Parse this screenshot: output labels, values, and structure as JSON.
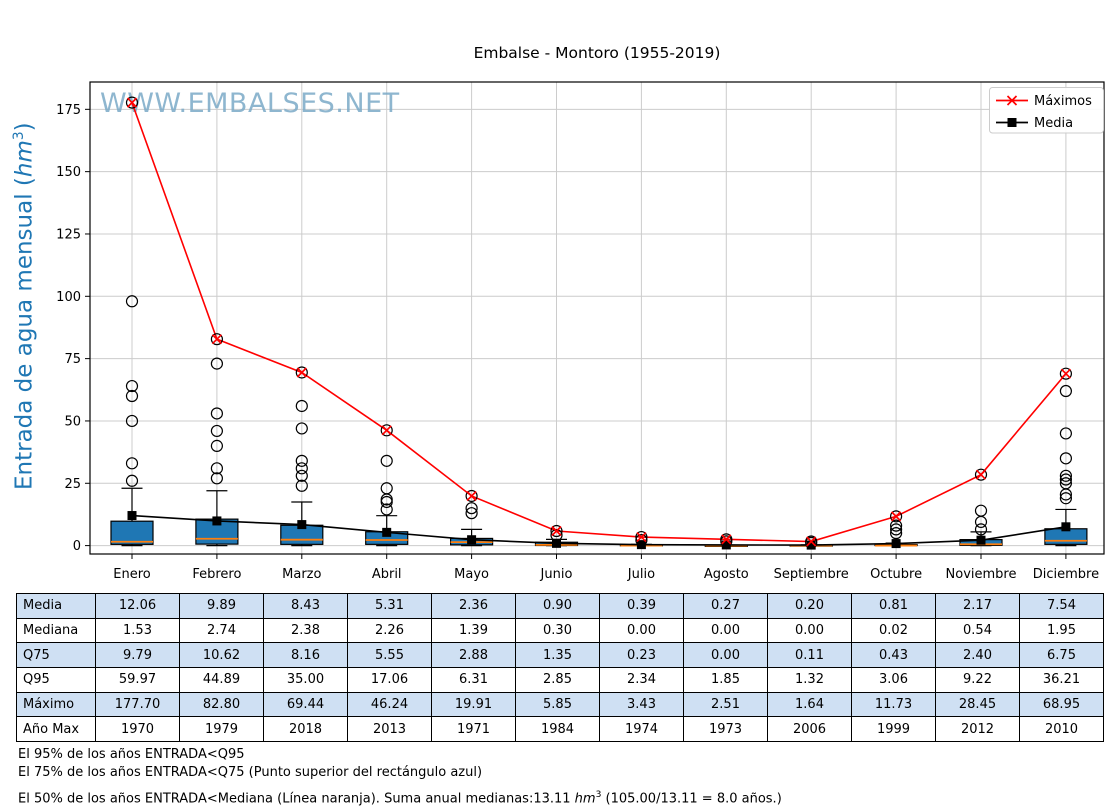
{
  "watermark": "WWW.EMBALSES.NET",
  "ylabel": {
    "prefix": "Entrada de agua mensual (",
    "unit": "hm",
    "sup": "3",
    "suffix": ")"
  },
  "chart_data": {
    "type": "box",
    "title": "Embalse - Montoro (1955-2019)",
    "xlabel": "",
    "ylabel": "Entrada de agua mensual (hm³)",
    "categories": [
      "Enero",
      "Febrero",
      "Marzo",
      "Abril",
      "Mayo",
      "Junio",
      "Julio",
      "Agosto",
      "Septiembre",
      "Octubre",
      "Noviembre",
      "Diciembre"
    ],
    "yticks": [
      0,
      25,
      50,
      75,
      100,
      125,
      150,
      175
    ],
    "ylim": [
      -3.4,
      186
    ],
    "grid": true,
    "legend_position": "upper right",
    "series": [
      {
        "name": "Máximos",
        "type": "line",
        "marker": "x",
        "color": "#ff0000",
        "values": [
          177.7,
          82.8,
          69.44,
          46.24,
          19.91,
          5.85,
          3.43,
          2.51,
          1.64,
          11.73,
          28.45,
          68.95
        ]
      },
      {
        "name": "Media",
        "type": "line",
        "marker": "square",
        "color": "#000000",
        "values": [
          12.06,
          9.89,
          8.43,
          5.31,
          2.36,
          0.9,
          0.39,
          0.27,
          0.2,
          0.81,
          2.17,
          7.54
        ]
      }
    ],
    "boxplot": {
      "box_fill": "#1f77b4",
      "median_color": "#ff7f0e",
      "median": [
        1.53,
        2.74,
        2.38,
        2.26,
        1.39,
        0.3,
        0.0,
        0.0,
        0.0,
        0.02,
        0.54,
        1.95
      ],
      "q1": [
        0.5,
        0.6,
        0.5,
        0.5,
        0.3,
        0.05,
        0,
        0,
        0,
        0.02,
        0.1,
        0.5
      ],
      "q3": [
        9.79,
        10.62,
        8.16,
        5.55,
        2.88,
        1.35,
        0.23,
        0.0,
        0.11,
        0.43,
        2.4,
        6.75
      ],
      "whisker_low": [
        0,
        0,
        0,
        0,
        0,
        0,
        0,
        0,
        0,
        0,
        0,
        0
      ],
      "whisker_high": [
        23,
        22,
        17.5,
        12,
        6.5,
        2.5,
        0.5,
        0.2,
        0.3,
        1,
        5.5,
        14.5
      ],
      "outliers": [
        [
          177.7,
          98,
          64,
          60,
          50,
          33,
          26
        ],
        [
          82.8,
          73,
          53,
          46,
          40,
          31,
          27
        ],
        [
          69.44,
          56,
          47,
          34,
          31,
          28,
          24
        ],
        [
          46.24,
          34,
          23,
          18.5,
          17.5,
          14.5
        ],
        [
          19.91,
          15,
          13
        ],
        [
          5.85,
          4.2
        ],
        [
          3.43,
          2.2
        ],
        [
          2.51,
          1.7
        ],
        [
          1.64,
          1.1
        ],
        [
          11.73,
          8,
          6.5,
          5
        ],
        [
          28.45,
          14,
          9.5,
          6.5
        ],
        [
          68.95,
          62,
          45,
          35,
          28,
          26.5,
          25,
          20.5,
          19
        ]
      ]
    }
  },
  "table": {
    "rows": [
      {
        "id": "media",
        "label": "Media",
        "shaded": true,
        "values": [
          "12.06",
          "9.89",
          "8.43",
          "5.31",
          "2.36",
          "0.90",
          "0.39",
          "0.27",
          "0.20",
          "0.81",
          "2.17",
          "7.54"
        ]
      },
      {
        "id": "mediana",
        "label": "Mediana",
        "shaded": false,
        "values": [
          "1.53",
          "2.74",
          "2.38",
          "2.26",
          "1.39",
          "0.30",
          "0.00",
          "0.00",
          "0.00",
          "0.02",
          "0.54",
          "1.95"
        ]
      },
      {
        "id": "q75",
        "label": "Q75",
        "shaded": true,
        "values": [
          "9.79",
          "10.62",
          "8.16",
          "5.55",
          "2.88",
          "1.35",
          "0.23",
          "0.00",
          "0.11",
          "0.43",
          "2.40",
          "6.75"
        ]
      },
      {
        "id": "q95",
        "label": "Q95",
        "shaded": false,
        "values": [
          "59.97",
          "44.89",
          "35.00",
          "17.06",
          "6.31",
          "2.85",
          "2.34",
          "1.85",
          "1.32",
          "3.06",
          "9.22",
          "36.21"
        ]
      },
      {
        "id": "maximo",
        "label": "Máximo",
        "shaded": true,
        "values": [
          "177.70",
          "82.80",
          "69.44",
          "46.24",
          "19.91",
          "5.85",
          "3.43",
          "2.51",
          "1.64",
          "11.73",
          "28.45",
          "68.95"
        ]
      },
      {
        "id": "ano-max",
        "label": "Año Max",
        "shaded": false,
        "values": [
          "1970",
          "1979",
          "2018",
          "2013",
          "1971",
          "1984",
          "1974",
          "1973",
          "2006",
          "1999",
          "2012",
          "2010"
        ]
      }
    ]
  },
  "footnotes": {
    "q95": "El 95% de los años ENTRADA<Q95",
    "q75": "El 75% de los años ENTRADA<Q75 (Punto superior del rectángulo azul)",
    "mediana_prefix": "El 50% de los años ENTRADA<Mediana (Línea naranja). Suma anual medianas:13.11 ",
    "mediana_unit": "hm",
    "mediana_sup": "3",
    "mediana_suffix": " (105.00/13.11 = 8.0 años.)"
  }
}
